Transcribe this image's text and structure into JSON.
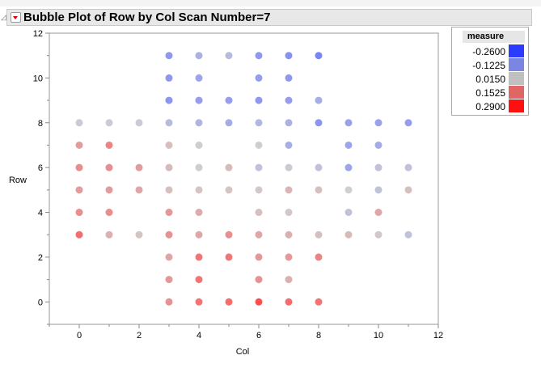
{
  "header": {
    "title": "Bubble Plot of Row by Col Scan Number=7"
  },
  "legend": {
    "title": "measure",
    "items": [
      {
        "label": "-0.2600",
        "color": "#2b3cff"
      },
      {
        "label": "-0.1225",
        "color": "#7b85e2"
      },
      {
        "label": "0.0150",
        "color": "#c0c0c0"
      },
      {
        "label": "0.1525",
        "color": "#e06666"
      },
      {
        "label": "0.2900",
        "color": "#ff1010"
      }
    ]
  },
  "chart_data": {
    "type": "scatter",
    "title": "Bubble Plot of Row by Col Scan Number=7",
    "xlabel": "Col",
    "ylabel": "Row",
    "xlim": [
      -1,
      12
    ],
    "ylim": [
      -1,
      12
    ],
    "xticks": [
      0,
      2,
      4,
      6,
      8,
      10,
      12
    ],
    "yticks": [
      0,
      2,
      4,
      6,
      8,
      10,
      12
    ],
    "grid": false,
    "legend_position": "top-right",
    "color_variable": "measure",
    "points": [
      {
        "x": 3,
        "y": 11,
        "measure": -0.15
      },
      {
        "x": 4,
        "y": 11,
        "measure": -0.08
      },
      {
        "x": 5,
        "y": 11,
        "measure": -0.05
      },
      {
        "x": 6,
        "y": 11,
        "measure": -0.15
      },
      {
        "x": 7,
        "y": 11,
        "measure": -0.17
      },
      {
        "x": 8,
        "y": 11,
        "measure": -0.2
      },
      {
        "x": 3,
        "y": 10,
        "measure": -0.15
      },
      {
        "x": 4,
        "y": 10,
        "measure": -0.12
      },
      {
        "x": 6,
        "y": 10,
        "measure": -0.14
      },
      {
        "x": 7,
        "y": 10,
        "measure": -0.15
      },
      {
        "x": 3,
        "y": 9,
        "measure": -0.16
      },
      {
        "x": 4,
        "y": 9,
        "measure": -0.14
      },
      {
        "x": 5,
        "y": 9,
        "measure": -0.14
      },
      {
        "x": 6,
        "y": 9,
        "measure": -0.15
      },
      {
        "x": 7,
        "y": 9,
        "measure": -0.14
      },
      {
        "x": 8,
        "y": 9,
        "measure": -0.09
      },
      {
        "x": 0,
        "y": 8,
        "measure": 0.0
      },
      {
        "x": 1,
        "y": 8,
        "measure": 0.0
      },
      {
        "x": 2,
        "y": 8,
        "measure": 0.0
      },
      {
        "x": 3,
        "y": 8,
        "measure": -0.05
      },
      {
        "x": 4,
        "y": 8,
        "measure": -0.07
      },
      {
        "x": 5,
        "y": 8,
        "measure": -0.1
      },
      {
        "x": 6,
        "y": 8,
        "measure": -0.06
      },
      {
        "x": 7,
        "y": 8,
        "measure": -0.08
      },
      {
        "x": 8,
        "y": 8,
        "measure": -0.16
      },
      {
        "x": 9,
        "y": 8,
        "measure": -0.13
      },
      {
        "x": 10,
        "y": 8,
        "measure": -0.13
      },
      {
        "x": 11,
        "y": 8,
        "measure": -0.14
      },
      {
        "x": 0,
        "y": 7,
        "measure": 0.12
      },
      {
        "x": 1,
        "y": 7,
        "measure": 0.17
      },
      {
        "x": 3,
        "y": 7,
        "measure": 0.05
      },
      {
        "x": 4,
        "y": 7,
        "measure": 0.01
      },
      {
        "x": 6,
        "y": 7,
        "measure": 0.01
      },
      {
        "x": 7,
        "y": 7,
        "measure": -0.09
      },
      {
        "x": 9,
        "y": 7,
        "measure": -0.12
      },
      {
        "x": 10,
        "y": 7,
        "measure": -0.1
      },
      {
        "x": 0,
        "y": 6,
        "measure": 0.15
      },
      {
        "x": 1,
        "y": 6,
        "measure": 0.15
      },
      {
        "x": 2,
        "y": 6,
        "measure": 0.12
      },
      {
        "x": 3,
        "y": 6,
        "measure": 0.06
      },
      {
        "x": 4,
        "y": 6,
        "measure": 0.01
      },
      {
        "x": 5,
        "y": 6,
        "measure": 0.06
      },
      {
        "x": 6,
        "y": 6,
        "measure": -0.03
      },
      {
        "x": 7,
        "y": 6,
        "measure": 0.0
      },
      {
        "x": 8,
        "y": 6,
        "measure": -0.03
      },
      {
        "x": 9,
        "y": 6,
        "measure": -0.12
      },
      {
        "x": 10,
        "y": 6,
        "measure": -0.03
      },
      {
        "x": 11,
        "y": 6,
        "measure": -0.03
      },
      {
        "x": 0,
        "y": 5,
        "measure": 0.12
      },
      {
        "x": 1,
        "y": 5,
        "measure": 0.12
      },
      {
        "x": 2,
        "y": 5,
        "measure": 0.1
      },
      {
        "x": 3,
        "y": 5,
        "measure": 0.05
      },
      {
        "x": 4,
        "y": 5,
        "measure": 0.04
      },
      {
        "x": 5,
        "y": 5,
        "measure": 0.04
      },
      {
        "x": 6,
        "y": 5,
        "measure": 0.03
      },
      {
        "x": 7,
        "y": 5,
        "measure": 0.07
      },
      {
        "x": 8,
        "y": 5,
        "measure": 0.05
      },
      {
        "x": 9,
        "y": 5,
        "measure": 0.02
      },
      {
        "x": 10,
        "y": 5,
        "measure": -0.03
      },
      {
        "x": 11,
        "y": 5,
        "measure": 0.05
      },
      {
        "x": 0,
        "y": 4,
        "measure": 0.15
      },
      {
        "x": 1,
        "y": 4,
        "measure": 0.15
      },
      {
        "x": 3,
        "y": 4,
        "measure": 0.13
      },
      {
        "x": 4,
        "y": 4,
        "measure": 0.09
      },
      {
        "x": 6,
        "y": 4,
        "measure": 0.05
      },
      {
        "x": 7,
        "y": 4,
        "measure": 0.03
      },
      {
        "x": 9,
        "y": 4,
        "measure": -0.03
      },
      {
        "x": 10,
        "y": 4,
        "measure": 0.1
      },
      {
        "x": 0,
        "y": 3,
        "measure": 0.22
      },
      {
        "x": 1,
        "y": 3,
        "measure": 0.08
      },
      {
        "x": 2,
        "y": 3,
        "measure": 0.04
      },
      {
        "x": 3,
        "y": 3,
        "measure": 0.14
      },
      {
        "x": 4,
        "y": 3,
        "measure": 0.1
      },
      {
        "x": 5,
        "y": 3,
        "measure": 0.15
      },
      {
        "x": 6,
        "y": 3,
        "measure": 0.1
      },
      {
        "x": 7,
        "y": 3,
        "measure": 0.08
      },
      {
        "x": 8,
        "y": 3,
        "measure": 0.05
      },
      {
        "x": 9,
        "y": 3,
        "measure": 0.06
      },
      {
        "x": 10,
        "y": 3,
        "measure": 0.03
      },
      {
        "x": 11,
        "y": 3,
        "measure": -0.03
      },
      {
        "x": 3,
        "y": 2,
        "measure": 0.1
      },
      {
        "x": 4,
        "y": 2,
        "measure": 0.2
      },
      {
        "x": 5,
        "y": 2,
        "measure": 0.2
      },
      {
        "x": 6,
        "y": 2,
        "measure": 0.13
      },
      {
        "x": 7,
        "y": 2,
        "measure": 0.13
      },
      {
        "x": 8,
        "y": 2,
        "measure": 0.17
      },
      {
        "x": 3,
        "y": 1,
        "measure": 0.13
      },
      {
        "x": 4,
        "y": 1,
        "measure": 0.2
      },
      {
        "x": 6,
        "y": 1,
        "measure": 0.14
      },
      {
        "x": 7,
        "y": 1,
        "measure": 0.08
      },
      {
        "x": 3,
        "y": 0,
        "measure": 0.14
      },
      {
        "x": 4,
        "y": 0,
        "measure": 0.2
      },
      {
        "x": 5,
        "y": 0,
        "measure": 0.22
      },
      {
        "x": 6,
        "y": 0,
        "measure": 0.28
      },
      {
        "x": 7,
        "y": 0,
        "measure": 0.22
      },
      {
        "x": 8,
        "y": 0,
        "measure": 0.2
      }
    ]
  }
}
